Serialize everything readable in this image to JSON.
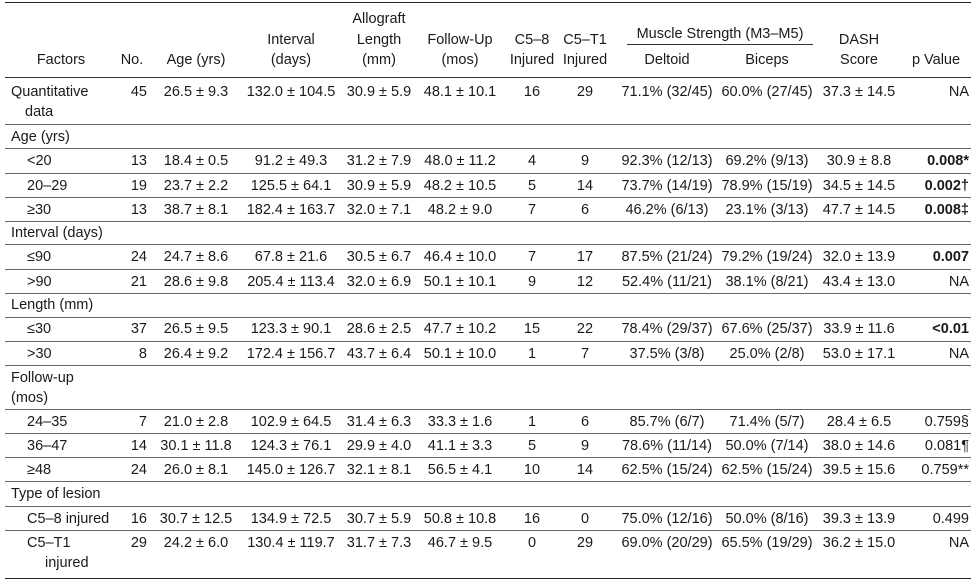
{
  "headers": {
    "factors": "Factors",
    "no": "No.",
    "age": "Age (yrs)",
    "interval": [
      "Interval",
      "(days)"
    ],
    "allograft": [
      "Allograft",
      "Length",
      "(mm)"
    ],
    "followup": [
      "Follow-Up",
      "(mos)"
    ],
    "c58": [
      "C5–8",
      "Injured"
    ],
    "c5t1": [
      "C5–T1",
      "Injured"
    ],
    "muscle": "Muscle Strength (M3–M5)",
    "deltoid": "Deltoid",
    "biceps": "Biceps",
    "dash": [
      "DASH",
      "Score"
    ],
    "pvalue": "p Value"
  },
  "rows": [
    {
      "type": "data",
      "factor": [
        "Quantitative",
        "data"
      ],
      "no": "45",
      "age": "26.5 ± 9.3",
      "interval": "132.0 ± 104.5",
      "allograft": "30.9 ± 5.9",
      "followup": "48.1 ± 10.1",
      "c58": "16",
      "c5t1": "29",
      "deltoid": "71.1% (32/45)",
      "biceps": "60.0% (27/45)",
      "dash": "37.3 ± 14.5",
      "p": "NA",
      "pbold": false
    },
    {
      "type": "section",
      "label": "Age (yrs)"
    },
    {
      "type": "data",
      "factor": [
        "<20"
      ],
      "no": "13",
      "age": "18.4 ± 0.5",
      "interval": "91.2 ± 49.3",
      "allograft": "31.2 ± 7.9",
      "followup": "48.0 ± 11.2",
      "c58": "4",
      "c5t1": "9",
      "deltoid": "92.3% (12/13)",
      "biceps": "69.2% (9/13)",
      "dash": "30.9 ± 8.8",
      "p": "0.008*",
      "pbold": true
    },
    {
      "type": "data",
      "factor": [
        "20–29"
      ],
      "no": "19",
      "age": "23.7 ± 2.2",
      "interval": "125.5 ± 64.1",
      "allograft": "30.9 ± 5.9",
      "followup": "48.2 ± 10.5",
      "c58": "5",
      "c5t1": "14",
      "deltoid": "73.7% (14/19)",
      "biceps": "78.9% (15/19)",
      "dash": "34.5 ± 14.5",
      "p": "0.002†",
      "pbold": true
    },
    {
      "type": "data",
      "factor": [
        "≥30"
      ],
      "no": "13",
      "age": "38.7 ± 8.1",
      "interval": "182.4 ± 163.7",
      "allograft": "32.0 ± 7.1",
      "followup": "48.2 ± 9.0",
      "c58": "7",
      "c5t1": "6",
      "deltoid": "46.2% (6/13)",
      "biceps": "23.1% (3/13)",
      "dash": "47.7 ± 14.5",
      "p": "0.008‡",
      "pbold": true
    },
    {
      "type": "section",
      "label": "Interval (days)"
    },
    {
      "type": "data",
      "factor": [
        "≤90"
      ],
      "no": "24",
      "age": "24.7 ± 8.6",
      "interval": "67.8 ± 21.6",
      "allograft": "30.5 ± 6.7",
      "followup": "46.4 ± 10.0",
      "c58": "7",
      "c5t1": "17",
      "deltoid": "87.5% (21/24)",
      "biceps": "79.2% (19/24)",
      "dash": "32.0 ± 13.9",
      "p": "0.007",
      "pbold": true
    },
    {
      "type": "data",
      "factor": [
        ">90"
      ],
      "no": "21",
      "age": "28.6 ± 9.8",
      "interval": "205.4 ± 113.4",
      "allograft": "32.0 ± 6.9",
      "followup": "50.1 ± 10.1",
      "c58": "9",
      "c5t1": "12",
      "deltoid": "52.4% (11/21)",
      "biceps": "38.1% (8/21)",
      "dash": "43.4 ± 13.0",
      "p": "NA",
      "pbold": false
    },
    {
      "type": "section",
      "label": "Length (mm)"
    },
    {
      "type": "data",
      "factor": [
        "≤30"
      ],
      "no": "37",
      "age": "26.5 ± 9.5",
      "interval": "123.3 ± 90.1",
      "allograft": "28.6 ± 2.5",
      "followup": "47.7 ± 10.2",
      "c58": "15",
      "c5t1": "22",
      "deltoid": "78.4% (29/37)",
      "biceps": "67.6% (25/37)",
      "dash": "33.9 ± 11.6",
      "p": "<0.01",
      "pbold": true
    },
    {
      "type": "data",
      "factor": [
        ">30"
      ],
      "no": "8",
      "age": "26.4 ± 9.2",
      "interval": "172.4 ± 156.7",
      "allograft": "43.7 ± 6.4",
      "followup": "50.1 ± 10.0",
      "c58": "1",
      "c5t1": "7",
      "deltoid": "37.5% (3/8)",
      "biceps": "25.0% (2/8)",
      "dash": "53.0 ± 17.1",
      "p": "NA",
      "pbold": false
    },
    {
      "type": "section2",
      "label": [
        "Follow-up",
        "(mos)"
      ]
    },
    {
      "type": "data",
      "factor": [
        "24–35"
      ],
      "no": "7",
      "age": "21.0 ± 2.8",
      "interval": "102.9 ± 64.5",
      "allograft": "31.4 ± 6.3",
      "followup": "33.3 ± 1.6",
      "c58": "1",
      "c5t1": "6",
      "deltoid": "85.7% (6/7)",
      "biceps": "71.4% (5/7)",
      "dash": "28.4 ± 6.5",
      "p": "0.759§",
      "pbold": false
    },
    {
      "type": "data",
      "factor": [
        "36–47"
      ],
      "no": "14",
      "age": "30.1 ± 11.8",
      "interval": "124.3 ± 76.1",
      "allograft": "29.9 ± 4.0",
      "followup": "41.1 ± 3.3",
      "c58": "5",
      "c5t1": "9",
      "deltoid": "78.6% (11/14)",
      "biceps": "50.0% (7/14)",
      "dash": "38.0 ± 14.6",
      "p": "0.081¶",
      "pbold": false
    },
    {
      "type": "data",
      "factor": [
        "≥48"
      ],
      "no": "24",
      "age": "26.0 ± 8.1",
      "interval": "145.0 ± 126.7",
      "allograft": "32.1 ± 8.1",
      "followup": "56.5 ± 4.1",
      "c58": "10",
      "c5t1": "14",
      "deltoid": "62.5% (15/24)",
      "biceps": "62.5% (15/24)",
      "dash": "39.5 ± 15.6",
      "p": "0.759**",
      "pbold": false
    },
    {
      "type": "section",
      "label": "Type of lesion"
    },
    {
      "type": "data",
      "factor": [
        "C5–8 injured"
      ],
      "no": "16",
      "age": "30.7 ± 12.5",
      "interval": "134.9 ± 72.5",
      "allograft": "30.7 ± 5.9",
      "followup": "50.8 ± 10.8",
      "c58": "16",
      "c5t1": "0",
      "deltoid": "75.0% (12/16)",
      "biceps": "50.0% (8/16)",
      "dash": "39.3 ± 13.9",
      "p": "0.499",
      "pbold": false
    },
    {
      "type": "data",
      "factor": [
        "C5–T1",
        "injured"
      ],
      "no": "29",
      "age": "24.2 ± 6.0",
      "interval": "130.4 ± 119.7",
      "allograft": "31.7 ± 7.3",
      "followup": "46.7 ± 9.5",
      "c58": "0",
      "c5t1": "29",
      "deltoid": "69.0% (20/29)",
      "biceps": "65.5% (19/29)",
      "dash": "36.2 ± 15.0",
      "p": "NA",
      "pbold": false
    }
  ]
}
